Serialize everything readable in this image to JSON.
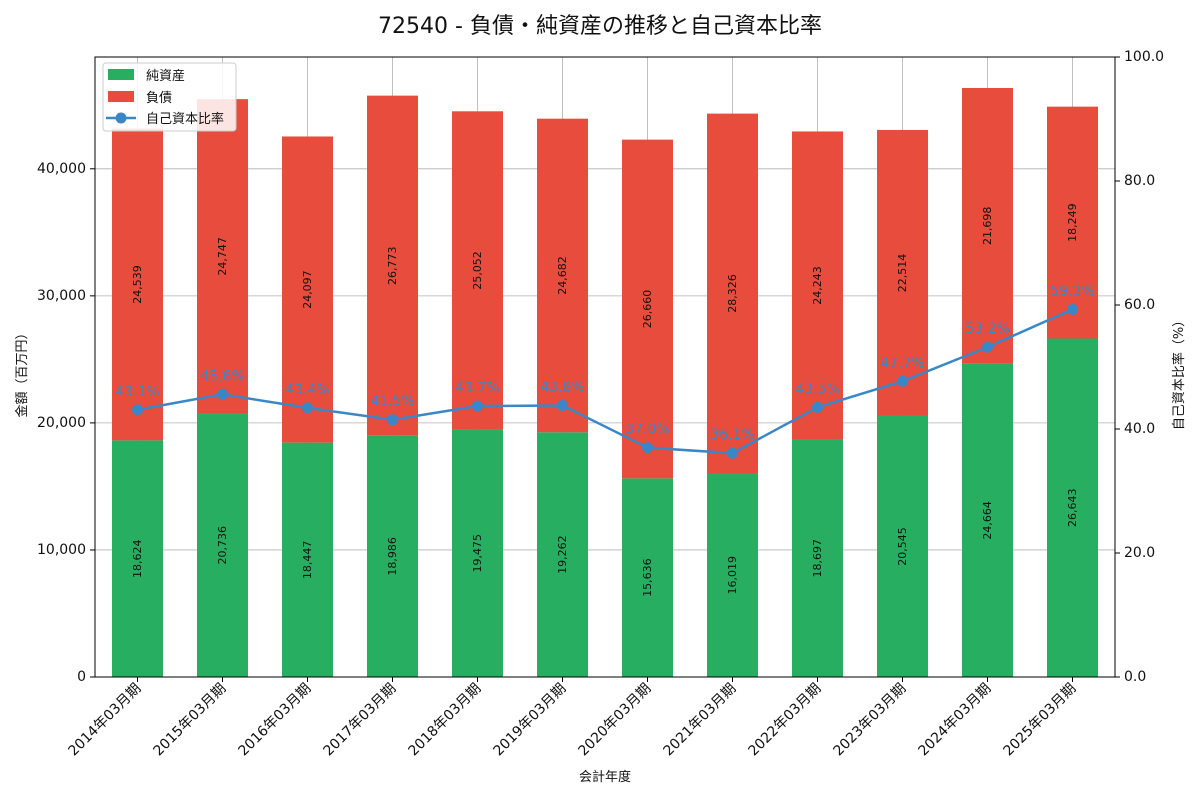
{
  "chart_data": {
    "type": "bar",
    "stacked": true,
    "title": "72540 - 負債・純資産の推移と自己資本比率",
    "xlabel": "会計年度",
    "ylabel": "金額（百万円）",
    "y2label": "自己資本比率（%）",
    "ylim": [
      0,
      48800
    ],
    "y2lim": [
      0,
      100
    ],
    "yticks": [
      0,
      10000,
      20000,
      30000,
      40000
    ],
    "ytick_labels": [
      "0",
      "10,000",
      "20,000",
      "30,000",
      "40,000"
    ],
    "y2ticks": [
      0,
      20,
      40,
      60,
      80,
      100
    ],
    "y2tick_labels": [
      "0.0",
      "20.0",
      "40.0",
      "60.0",
      "80.0",
      "100.0"
    ],
    "grid": true,
    "legend_position": "top-left",
    "categories": [
      "2014年03月期",
      "2015年03月期",
      "2016年03月期",
      "2017年03月期",
      "2018年03月期",
      "2019年03月期",
      "2020年03月期",
      "2021年03月期",
      "2022年03月期",
      "2023年03月期",
      "2024年03月期",
      "2025年03月期"
    ],
    "series": [
      {
        "name": "純資産",
        "color": "#27ae60",
        "values": [
          18624,
          20736,
          18447,
          18986,
          19475,
          19262,
          15636,
          16019,
          18697,
          20545,
          24664,
          26643
        ],
        "labels": [
          "18,624",
          "20,736",
          "18,447",
          "18,986",
          "19,475",
          "19,262",
          "15,636",
          "16,019",
          "18,697",
          "20,545",
          "24,664",
          "26,643"
        ]
      },
      {
        "name": "負債",
        "color": "#e74c3c",
        "values": [
          24539,
          24747,
          24097,
          26773,
          25052,
          24682,
          26660,
          28326,
          24243,
          22514,
          21698,
          18249
        ],
        "labels": [
          "24,539",
          "24,747",
          "24,097",
          "26,773",
          "25,052",
          "24,682",
          "26,660",
          "28,326",
          "24,243",
          "22,514",
          "21,698",
          "18,249"
        ]
      },
      {
        "name": "自己資本比率",
        "type": "line",
        "axis": "right",
        "color": "#3a87c7",
        "values": [
          43.1,
          45.6,
          43.4,
          41.5,
          43.7,
          43.8,
          37.0,
          36.1,
          43.5,
          47.7,
          53.2,
          59.3
        ],
        "labels": [
          "43.1%",
          "45.6%",
          "43.4%",
          "41.5%",
          "43.7%",
          "43.8%",
          "37.0%",
          "36.1%",
          "43.5%",
          "47.7%",
          "53.2%",
          "59.3%"
        ]
      }
    ]
  }
}
